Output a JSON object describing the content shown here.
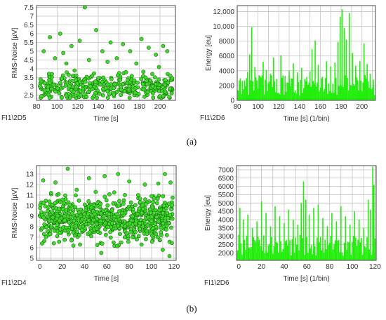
{
  "captions": {
    "a": "(a)",
    "b": "(b)"
  },
  "styles": {
    "point_fill": "#3cdb2a",
    "point_stroke": "#1f6d12",
    "bar_fill": "#22ee0c",
    "grid": "#c4c4c4",
    "text": "#333333"
  },
  "chart_data": [
    {
      "id": "a-left",
      "type": "scatter",
      "panel_tag": "FI1\\2D5",
      "xlabel": "Time [s]",
      "ylabel": "RMS-Noise [µV]",
      "xlim": [
        80,
        215
      ],
      "ylim": [
        2.2,
        7.6
      ],
      "xticks": [
        80,
        100,
        120,
        140,
        160,
        180,
        200
      ],
      "yticks": [
        2.5,
        3,
        3.5,
        4,
        4.5,
        5,
        5.5,
        6,
        6.5,
        7,
        7.5
      ],
      "ytick_labels": [
        "2.5",
        "3",
        "3.5",
        "4",
        "4.5",
        "5",
        "5.5",
        "6",
        "6.5",
        "7",
        "7.5"
      ],
      "grid": true,
      "series": [
        {
          "points": [
            [
              127,
              7.5
            ],
            [
              87,
              5.0
            ],
            [
              93,
              5.8
            ],
            [
              103,
              6.0
            ],
            [
              106,
              4.9
            ],
            [
              114,
              5.3
            ],
            [
              122,
              5.6
            ],
            [
              138,
              6.2
            ],
            [
              144,
              5.0
            ],
            [
              152,
              5.5
            ],
            [
              164,
              5.4
            ],
            [
              171,
              5.0
            ],
            [
              182,
              5.7
            ],
            [
              189,
              5.2
            ],
            [
              196,
              4.8
            ],
            [
              203,
              5.3
            ],
            [
              207,
              5.0
            ],
            [
              98,
              4.6
            ],
            [
              109,
              4.3
            ],
            [
              131,
              4.5
            ],
            [
              149,
              4.4
            ],
            [
              158,
              4.6
            ],
            [
              177,
              4.3
            ],
            [
              199,
              4.1
            ],
            [
              84,
              3.4
            ],
            [
              95,
              3.7
            ],
            [
              117,
              3.9
            ],
            [
              134,
              3.6
            ],
            [
              167,
              3.8
            ],
            [
              186,
              3.5
            ],
            [
              210,
              3.6
            ],
            [
              91,
              2.8
            ],
            [
              112,
              3.0
            ],
            [
              125,
              2.7
            ],
            [
              142,
              3.1
            ],
            [
              155,
              2.9
            ],
            [
              174,
              2.8
            ],
            [
              193,
              3.0
            ],
            [
              205,
              2.7
            ]
          ]
        }
      ]
    },
    {
      "id": "a-right",
      "type": "bar",
      "panel_tag": "FI1\\2D6",
      "xlabel": "Time [s] (1/bin)",
      "ylabel": "Energy [eu]",
      "xlim": [
        80,
        213
      ],
      "ylim": [
        0,
        12800
      ],
      "xticks": [
        80,
        90,
        100,
        110,
        120,
        130,
        140,
        150,
        160,
        170,
        180,
        190,
        200,
        210
      ],
      "xtick_labels": [
        "80",
        "",
        "100",
        "",
        "120",
        "",
        "140",
        "",
        "160",
        "",
        "180",
        "",
        "200",
        ""
      ],
      "yticks": [
        0,
        2000,
        4000,
        6000,
        8000,
        10000,
        12000
      ],
      "ytick_labels": [
        "0",
        "2000",
        "4000",
        "6000",
        "8000",
        "10,000",
        "12,000"
      ],
      "grid": true,
      "bin_width": 1,
      "bins": [
        [
          83,
          2000
        ],
        [
          86,
          1500
        ],
        [
          90,
          3800
        ],
        [
          92,
          6200
        ],
        [
          94,
          9900
        ],
        [
          97,
          4500
        ],
        [
          101,
          3400
        ],
        [
          105,
          5200
        ],
        [
          108,
          4100
        ],
        [
          112,
          3600
        ],
        [
          115,
          5800
        ],
        [
          118,
          2900
        ],
        [
          122,
          6100
        ],
        [
          126,
          3300
        ],
        [
          130,
          4000
        ],
        [
          134,
          5000
        ],
        [
          138,
          3800
        ],
        [
          142,
          4400
        ],
        [
          146,
          2600
        ],
        [
          150,
          3900
        ],
        [
          152,
          6900
        ],
        [
          155,
          8100
        ],
        [
          158,
          4800
        ],
        [
          162,
          3200
        ],
        [
          166,
          5300
        ],
        [
          170,
          4600
        ],
        [
          174,
          5100
        ],
        [
          177,
          7900
        ],
        [
          179,
          11300
        ],
        [
          181,
          12300
        ],
        [
          183,
          9800
        ],
        [
          185,
          8200
        ],
        [
          188,
          11800
        ],
        [
          191,
          6400
        ],
        [
          194,
          4700
        ],
        [
          198,
          5300
        ],
        [
          202,
          7700
        ],
        [
          205,
          4900
        ],
        [
          208,
          3600
        ],
        [
          211,
          2800
        ]
      ]
    },
    {
      "id": "b-left",
      "type": "scatter",
      "panel_tag": "FI1\\2D4",
      "xlabel": "Time [s]",
      "ylabel": "RMS-Noise [µV]",
      "xlim": [
        -3,
        122
      ],
      "ylim": [
        4.8,
        13.8
      ],
      "xticks": [
        0,
        10,
        20,
        30,
        40,
        50,
        60,
        70,
        80,
        90,
        100,
        110,
        120
      ],
      "xtick_labels": [
        "0",
        "",
        "20",
        "",
        "40",
        "",
        "60",
        "",
        "80",
        "",
        "100",
        "",
        "120"
      ],
      "yticks": [
        5,
        6,
        7,
        8,
        9,
        10,
        11,
        12,
        13
      ],
      "ytick_labels": [
        "5",
        "6",
        "7",
        "8",
        "9",
        "10",
        "11",
        "12",
        "13"
      ],
      "grid": true,
      "series": [
        {
          "points": [
            [
              25,
              13.5
            ],
            [
              70,
              13.0
            ],
            [
              3,
              12.4
            ],
            [
              14,
              12.2
            ],
            [
              44,
              12.6
            ],
            [
              58,
              12.8
            ],
            [
              80,
              12.3
            ],
            [
              94,
              12.0
            ],
            [
              112,
              13.0
            ],
            [
              106,
              12.1
            ],
            [
              117,
              12.2
            ],
            [
              10,
              11.2
            ],
            [
              33,
              11.5
            ],
            [
              50,
              11.3
            ],
            [
              88,
              11.0
            ],
            [
              100,
              10.9
            ],
            [
              7,
              9.5
            ],
            [
              22,
              9.0
            ],
            [
              38,
              8.7
            ],
            [
              62,
              9.2
            ],
            [
              76,
              8.5
            ],
            [
              97,
              8.9
            ],
            [
              114,
              9.3
            ],
            [
              18,
              7.4
            ],
            [
              46,
              7.1
            ],
            [
              83,
              7.0
            ],
            [
              104,
              7.3
            ],
            [
              2,
              6.4
            ],
            [
              30,
              6.2
            ],
            [
              66,
              6.5
            ],
            [
              91,
              6.3
            ],
            [
              55,
              5.5
            ],
            [
              110,
              5.8
            ],
            [
              116,
              5.2
            ]
          ]
        }
      ]
    },
    {
      "id": "b-right",
      "type": "bar",
      "panel_tag": "FI1\\2D6",
      "xlabel": "Time [s] (1/bin)",
      "ylabel": "Energy [eu]",
      "xlim": [
        -2,
        121
      ],
      "ylim": [
        1550,
        7250
      ],
      "xticks": [
        0,
        10,
        20,
        30,
        40,
        50,
        60,
        70,
        80,
        90,
        100,
        110,
        120
      ],
      "xtick_labels": [
        "0",
        "",
        "20",
        "",
        "40",
        "",
        "60",
        "",
        "80",
        "",
        "100",
        "",
        "120"
      ],
      "yticks": [
        2000,
        2500,
        3000,
        3500,
        4000,
        4500,
        5000,
        5500,
        6000,
        6500,
        7000
      ],
      "ytick_labels": [
        "2000",
        "2500",
        "3000",
        "3500",
        "4000",
        "4500",
        "5000",
        "5500",
        "6000",
        "6500",
        "7000"
      ],
      "grid": true,
      "bin_width": 1,
      "bins": [
        [
          1,
          4700
        ],
        [
          4,
          4000
        ],
        [
          8,
          4300
        ],
        [
          12,
          3500
        ],
        [
          16,
          3900
        ],
        [
          20,
          5100
        ],
        [
          24,
          4400
        ],
        [
          28,
          3600
        ],
        [
          32,
          4800
        ],
        [
          36,
          4200
        ],
        [
          40,
          3800
        ],
        [
          44,
          4600
        ],
        [
          48,
          4000
        ],
        [
          52,
          3700
        ],
        [
          55,
          5000
        ],
        [
          57,
          6300
        ],
        [
          59,
          5200
        ],
        [
          62,
          4300
        ],
        [
          66,
          4700
        ],
        [
          70,
          4900
        ],
        [
          74,
          4100
        ],
        [
          78,
          3600
        ],
        [
          82,
          4400
        ],
        [
          86,
          3900
        ],
        [
          90,
          4800
        ],
        [
          94,
          4200
        ],
        [
          98,
          3700
        ],
        [
          102,
          4500
        ],
        [
          106,
          4000
        ],
        [
          110,
          3500
        ],
        [
          114,
          5200
        ],
        [
          116,
          4600
        ],
        [
          118,
          7200
        ],
        [
          119,
          6100
        ]
      ]
    }
  ]
}
